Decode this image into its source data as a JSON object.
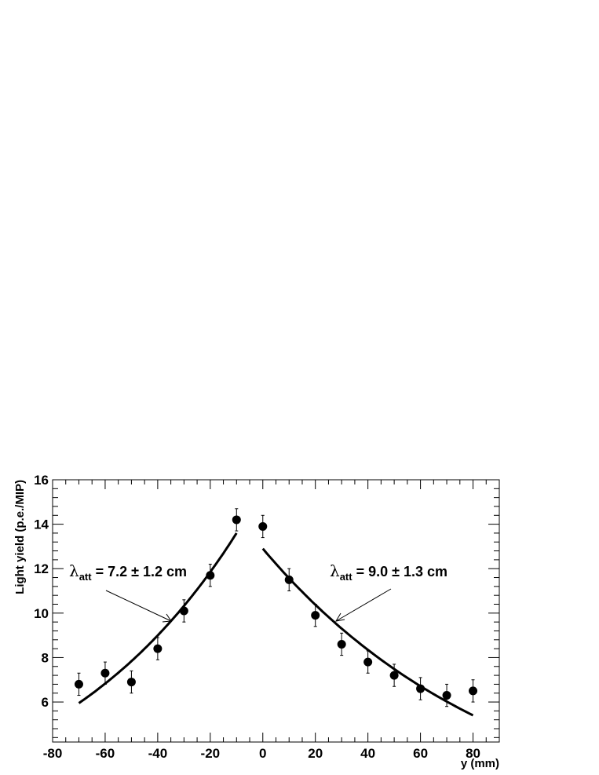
{
  "chart_data": {
    "type": "scatter",
    "title": "",
    "xlabel": "y (mm)",
    "ylabel": "Light yield (p.e./MIP)",
    "xlim": [
      -80,
      90
    ],
    "ylim": [
      4.2,
      16
    ],
    "x_ticks": [
      "-80",
      "-60",
      "-40",
      "-20",
      "0",
      "20",
      "40",
      "60",
      "80"
    ],
    "y_ticks": [
      "6",
      "8",
      "10",
      "12",
      "14",
      "16"
    ],
    "grid": false,
    "series": [
      {
        "x": [
          -70,
          -60,
          -50,
          -40,
          -30,
          -20,
          -10,
          0,
          10,
          20,
          30,
          40,
          50,
          60,
          70,
          80
        ],
        "y": [
          6.8,
          7.3,
          6.9,
          8.4,
          10.1,
          11.7,
          14.2,
          13.9,
          11.5,
          9.9,
          8.6,
          7.8,
          7.2,
          6.6,
          6.3,
          6.5
        ],
        "yerr": [
          0.5,
          0.5,
          0.5,
          0.5,
          0.5,
          0.5,
          0.5,
          0.5,
          0.5,
          0.5,
          0.5,
          0.5,
          0.5,
          0.5,
          0.5,
          0.5
        ]
      }
    ],
    "fits": [
      {
        "x_range": [
          -70,
          -10
        ],
        "y_start": 5.95,
        "y_end": 13.6
      },
      {
        "x_range": [
          0,
          80
        ],
        "y_start": 12.9,
        "y_end": 5.4
      }
    ],
    "annotations": [
      {
        "symbol": "λ",
        "subscript": "att",
        "text": " = 7.2 ± 1.2 cm",
        "arrow_target": [
          -36,
          9.6
        ]
      },
      {
        "symbol": "λ",
        "subscript": "att",
        "text": " = 9.0 ± 1.3 cm",
        "arrow_target": [
          27,
          9.6
        ]
      }
    ]
  }
}
